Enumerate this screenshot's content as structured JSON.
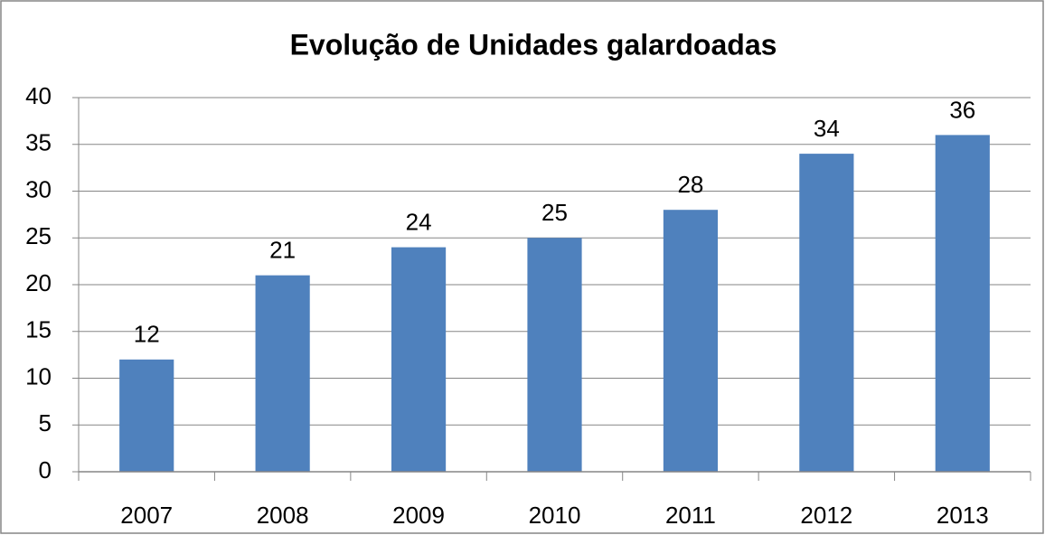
{
  "chart_data": {
    "type": "bar",
    "title": "Evolução de Unidades galardoadas",
    "categories": [
      "2007",
      "2008",
      "2009",
      "2010",
      "2011",
      "2012",
      "2013"
    ],
    "values": [
      12,
      21,
      24,
      25,
      28,
      34,
      36
    ],
    "color": "#4f81bd",
    "ylim": [
      0,
      40
    ],
    "yticks": [
      0,
      5,
      10,
      15,
      20,
      25,
      30,
      35,
      40
    ],
    "grid": true
  }
}
